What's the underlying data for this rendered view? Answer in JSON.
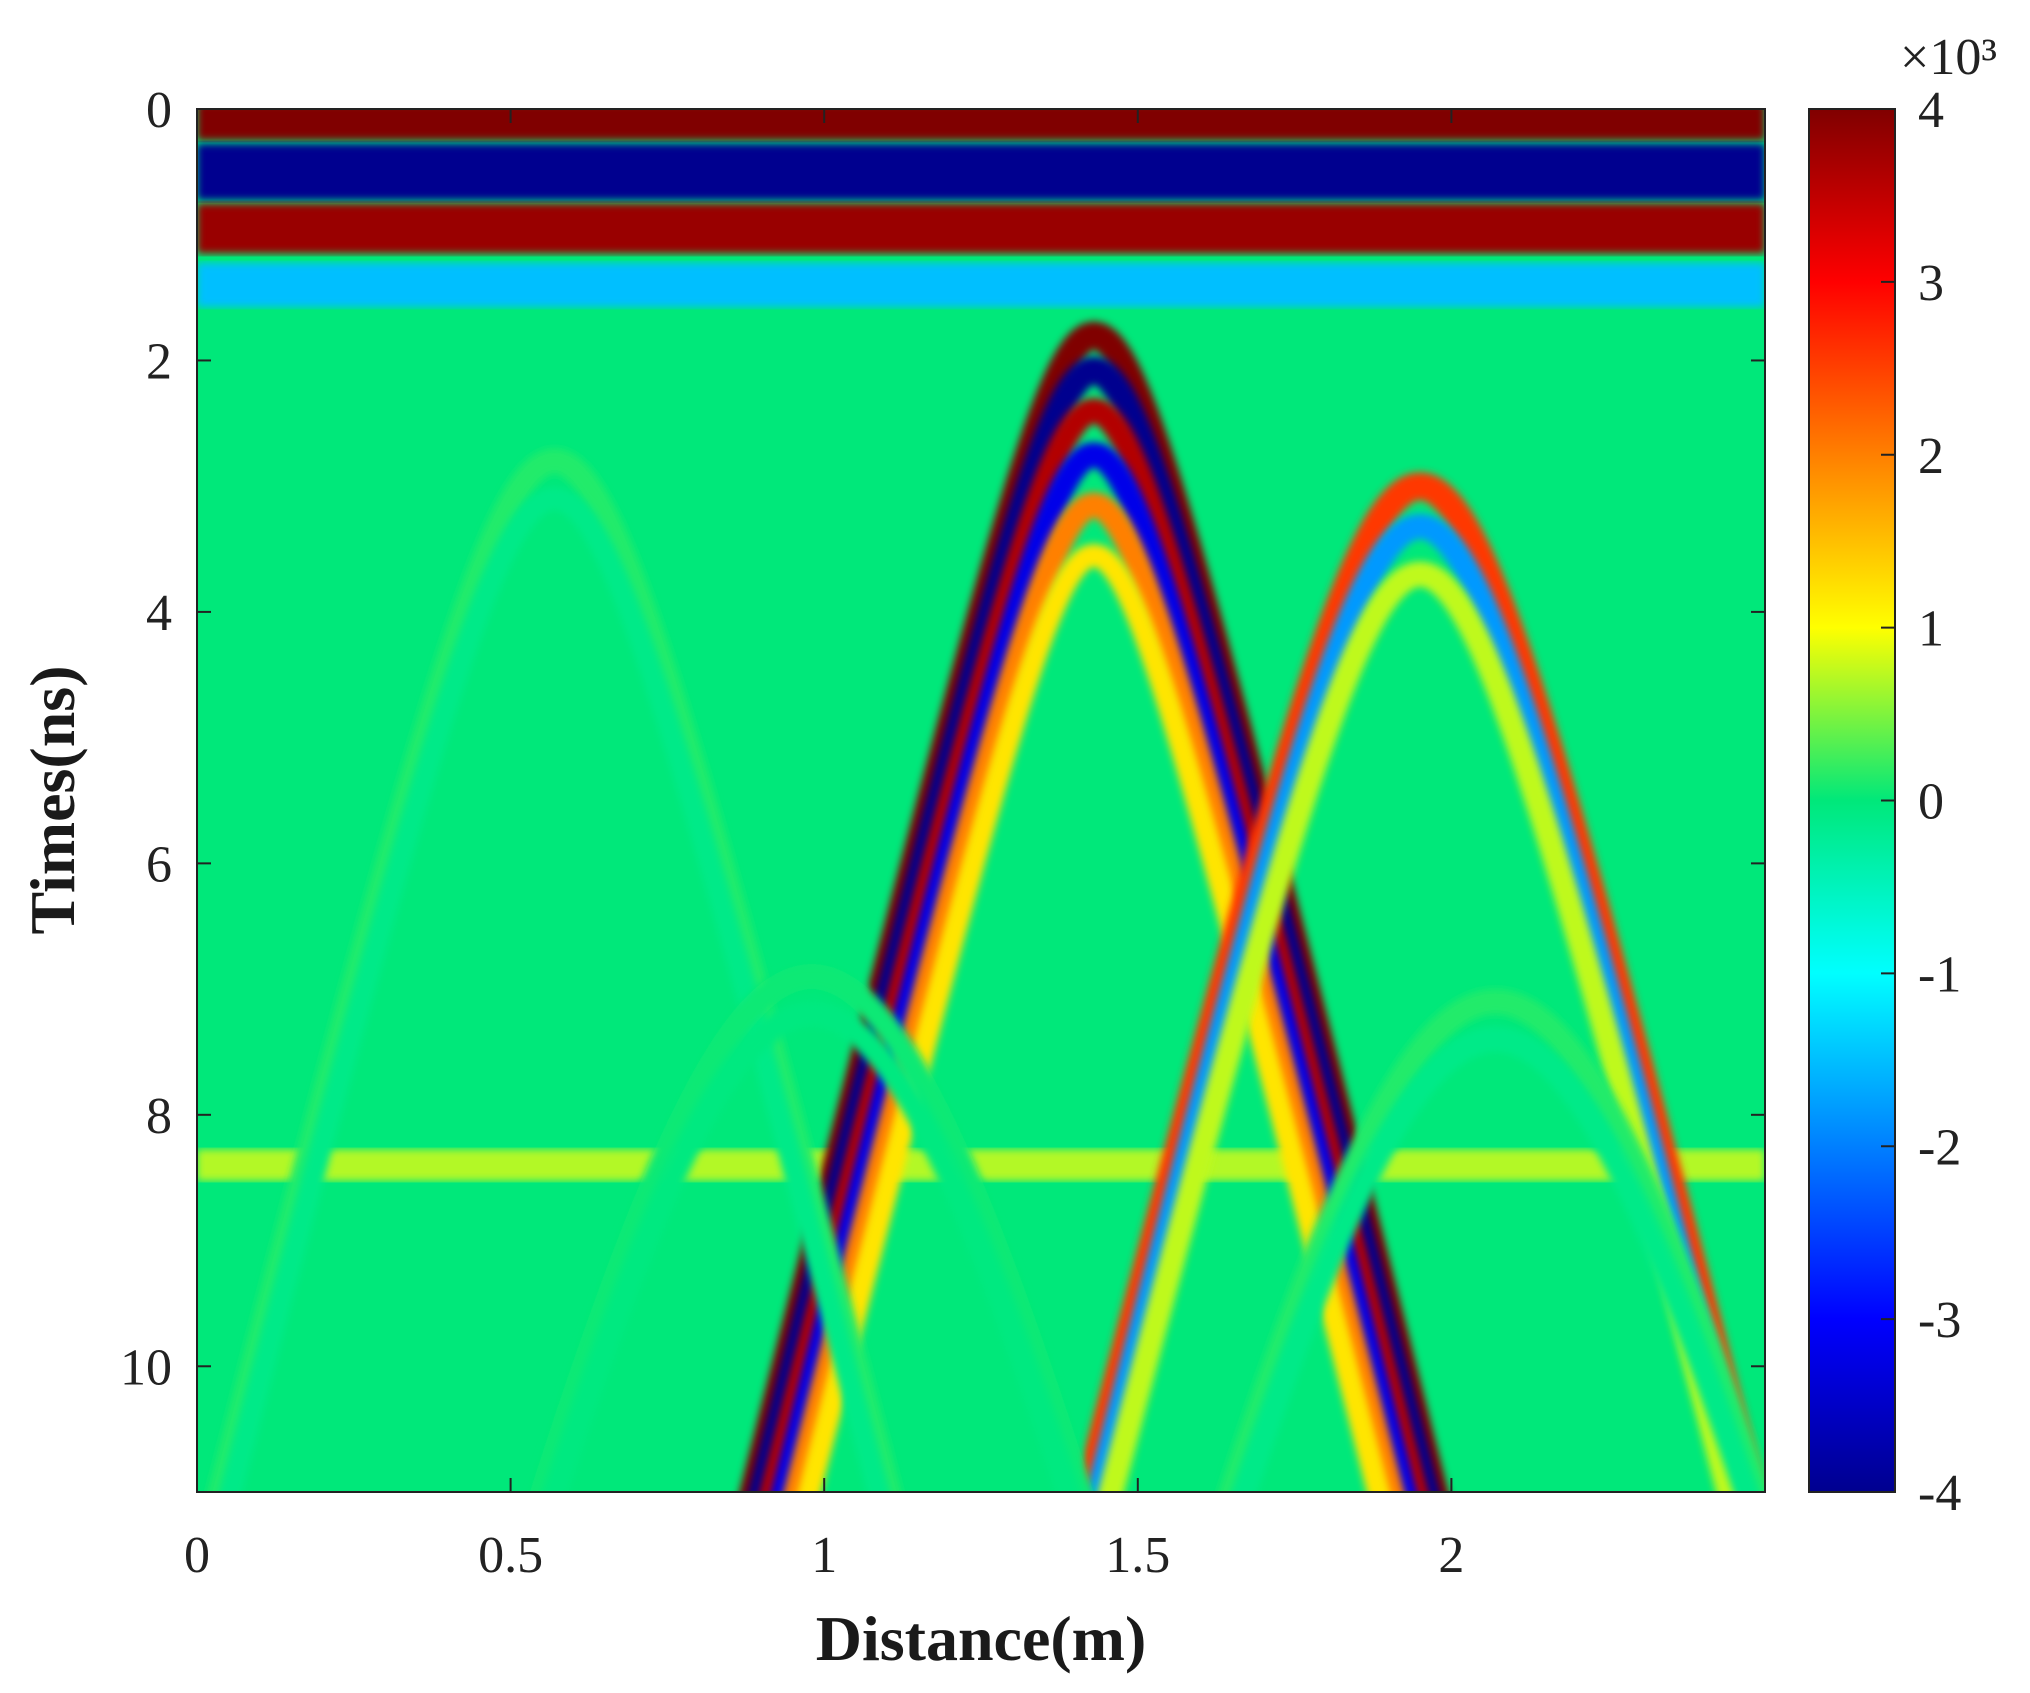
{
  "chart_data": {
    "type": "heatmap",
    "title": "",
    "xlabel": "Distance(m)",
    "ylabel": "Times(ns)",
    "xlim": [
      0,
      2.5
    ],
    "ylim": [
      11,
      0
    ],
    "x_ticks": [
      0,
      0.5,
      1,
      1.5,
      2
    ],
    "x_tick_labels": [
      "0",
      "0.5",
      "1",
      "1.5",
      "2"
    ],
    "y_ticks": [
      0,
      2,
      4,
      6,
      8,
      10
    ],
    "y_tick_labels": [
      "0",
      "2",
      "4",
      "6",
      "8",
      "10"
    ],
    "colorbar": {
      "colormap": "jet",
      "range": [
        -4000,
        4000
      ],
      "ticks": [
        4,
        3,
        2,
        1,
        0,
        -1,
        -2,
        -3,
        -4
      ],
      "tick_labels": [
        "4",
        "3",
        "2",
        "1",
        "0",
        "-1",
        "-2",
        "-3",
        "-4"
      ],
      "exponent_label": "×10³"
    },
    "features": [
      {
        "name": "direct-wave-positive",
        "time_ns": 0.1,
        "amplitude": 4000
      },
      {
        "name": "direct-wave-negative",
        "time_ns": 0.5,
        "amplitude": -4000
      },
      {
        "name": "ground-reflection-positive",
        "time_ns": 0.95,
        "amplitude": 3800
      },
      {
        "name": "ground-reflection-negative",
        "time_ns": 1.4,
        "amplitude": -1500
      },
      {
        "name": "hyperbola-target-1",
        "apex_distance_m": 1.43,
        "apex_time_ns": 1.8,
        "amplitude": 4000
      },
      {
        "name": "hyperbola-target-2",
        "apex_distance_m": 1.95,
        "apex_time_ns": 3.0,
        "amplitude": 3000
      },
      {
        "name": "hyperbola-weak-1",
        "apex_distance_m": 0.57,
        "apex_time_ns": 2.8,
        "amplitude": 700
      },
      {
        "name": "hyperbola-weak-2",
        "apex_distance_m": 0.98,
        "apex_time_ns": 6.9,
        "amplitude": 400
      },
      {
        "name": "hyperbola-weak-3",
        "apex_distance_m": 2.07,
        "apex_time_ns": 7.1,
        "amplitude": 700
      },
      {
        "name": "deep-reflector",
        "time_ns": 8.4,
        "amplitude": 700
      }
    ]
  }
}
